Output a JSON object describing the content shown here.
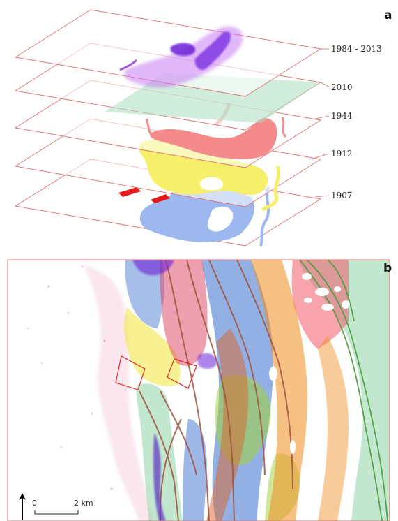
{
  "panel_a": {
    "letter": "a",
    "layers": [
      {
        "label": "1984 - 2013"
      },
      {
        "label": "2010"
      },
      {
        "label": "1944"
      },
      {
        "label": "1912"
      },
      {
        "label": "1907"
      }
    ]
  },
  "panel_b": {
    "letter": "b",
    "scale": {
      "zero": "0",
      "end": "2 km"
    }
  },
  "colors": {
    "frame_red": "#e0706f",
    "water_1984_2013": "#8a2be2",
    "layer_2010": "#a9dfbf",
    "layer_1944": "#f48a8a",
    "layer_1912": "#f5ef6a",
    "layer_1907": "#9db8ee",
    "marker_red": "#e41a1c"
  }
}
